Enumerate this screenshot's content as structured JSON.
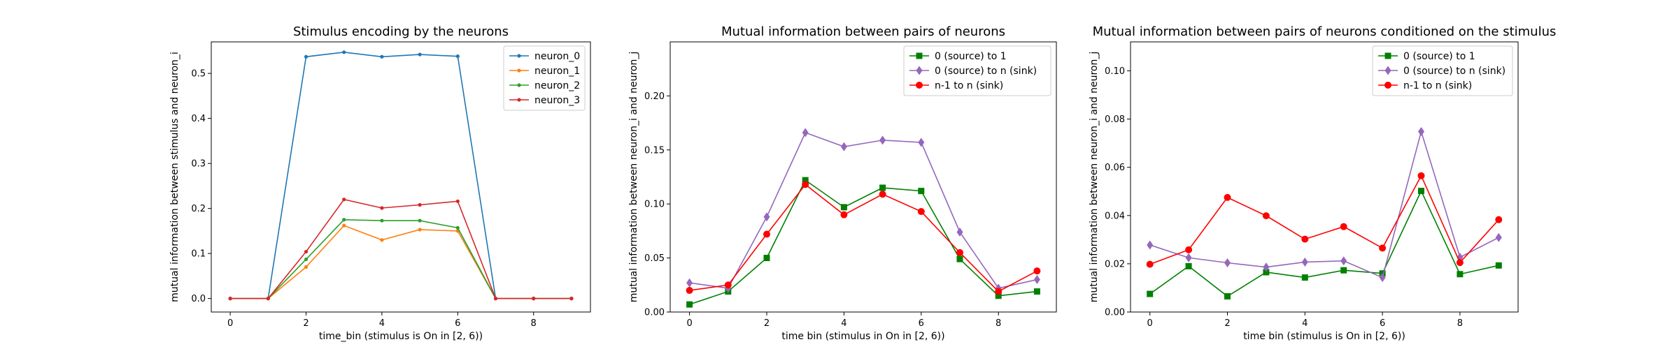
{
  "chart_data": [
    {
      "type": "line",
      "title": "Stimulus encoding by the neurons",
      "xlabel": "time_bin (stimulus is On in [2, 6))",
      "ylabel": "mutual information between stimulus and neuron_i",
      "xlim": [
        -0.5,
        9.5
      ],
      "ylim": [
        -0.03,
        0.57
      ],
      "xticks": [
        0,
        2,
        4,
        6,
        8
      ],
      "yticks": [
        0.0,
        0.1,
        0.2,
        0.3,
        0.4,
        0.5
      ],
      "ytick_decimals": 1,
      "legend_position": "top-right",
      "grid": false,
      "x": [
        0,
        1,
        2,
        3,
        4,
        5,
        6,
        7,
        8,
        9
      ],
      "series": [
        {
          "name": "neuron_0",
          "color": "#1f77b4",
          "marker": "point",
          "values": [
            0,
            0,
            0.537,
            0.547,
            0.537,
            0.542,
            0.538,
            0,
            0,
            0
          ]
        },
        {
          "name": "neuron_1",
          "color": "#ff7f0e",
          "marker": "point",
          "values": [
            0,
            0,
            0.07,
            0.162,
            0.13,
            0.153,
            0.15,
            0,
            0,
            0
          ]
        },
        {
          "name": "neuron_2",
          "color": "#2ca02c",
          "marker": "point",
          "values": [
            0,
            0,
            0.087,
            0.175,
            0.173,
            0.173,
            0.157,
            0,
            0,
            0
          ]
        },
        {
          "name": "neuron_3",
          "color": "#d62728",
          "marker": "point",
          "values": [
            0,
            0,
            0.104,
            0.22,
            0.201,
            0.208,
            0.216,
            0,
            0,
            0
          ]
        }
      ]
    },
    {
      "type": "line",
      "title": "Mutual information between pairs of neurons",
      "xlabel": "time bin (stimulus in On in [2, 6))",
      "ylabel": "mutual information between neuron_i and neuron_j",
      "xlim": [
        -0.5,
        9.5
      ],
      "ylim": [
        0,
        0.25
      ],
      "xticks": [
        0,
        2,
        4,
        6,
        8
      ],
      "yticks": [
        0.0,
        0.05,
        0.1,
        0.15,
        0.2
      ],
      "ytick_decimals": 2,
      "legend_position": "top-right",
      "grid": false,
      "x": [
        0,
        1,
        2,
        3,
        4,
        5,
        6,
        7,
        8,
        9
      ],
      "series": [
        {
          "name": "0 (source) to 1",
          "color": "#008000",
          "marker": "square",
          "values": [
            0.007,
            0.019,
            0.05,
            0.122,
            0.097,
            0.115,
            0.112,
            0.049,
            0.015,
            0.019
          ]
        },
        {
          "name": "0 (source) to n (sink)",
          "color": "#9467bd",
          "marker": "diamond",
          "values": [
            0.027,
            0.022,
            0.088,
            0.166,
            0.153,
            0.159,
            0.157,
            0.074,
            0.022,
            0.03
          ]
        },
        {
          "name": "n-1 to n (sink)",
          "color": "#ff0000",
          "marker": "circle",
          "values": [
            0.02,
            0.025,
            0.072,
            0.118,
            0.09,
            0.109,
            0.093,
            0.055,
            0.019,
            0.038
          ]
        }
      ]
    },
    {
      "type": "line",
      "title": "Mutual information between pairs of neurons conditioned on the stimulus",
      "xlabel": "time bin (stimulus is On in [2, 6))",
      "ylabel": "mutual information between neuron_i and neuron_j",
      "xlim": [
        -0.5,
        9.5
      ],
      "ylim": [
        0,
        0.112
      ],
      "xticks": [
        0,
        2,
        4,
        6,
        8
      ],
      "yticks": [
        0.0,
        0.02,
        0.04,
        0.06,
        0.08,
        0.1
      ],
      "ytick_decimals": 2,
      "legend_position": "top-right",
      "grid": false,
      "x": [
        0,
        1,
        2,
        3,
        4,
        5,
        6,
        7,
        8,
        9
      ],
      "series": [
        {
          "name": "0 (source) to 1",
          "color": "#008000",
          "marker": "square",
          "values": [
            0.0075,
            0.019,
            0.0065,
            0.0165,
            0.0143,
            0.0173,
            0.016,
            0.0502,
            0.0157,
            0.0193
          ]
        },
        {
          "name": "0 (source) to n (sink)",
          "color": "#9467bd",
          "marker": "diamond",
          "values": [
            0.0278,
            0.0225,
            0.0204,
            0.0186,
            0.0207,
            0.0212,
            0.0143,
            0.0748,
            0.0227,
            0.0309
          ]
        },
        {
          "name": "n-1 to n (sink)",
          "color": "#ff0000",
          "marker": "circle",
          "values": [
            0.0198,
            0.0258,
            0.0475,
            0.0399,
            0.0302,
            0.0354,
            0.0265,
            0.0565,
            0.0205,
            0.0383
          ]
        }
      ]
    }
  ]
}
